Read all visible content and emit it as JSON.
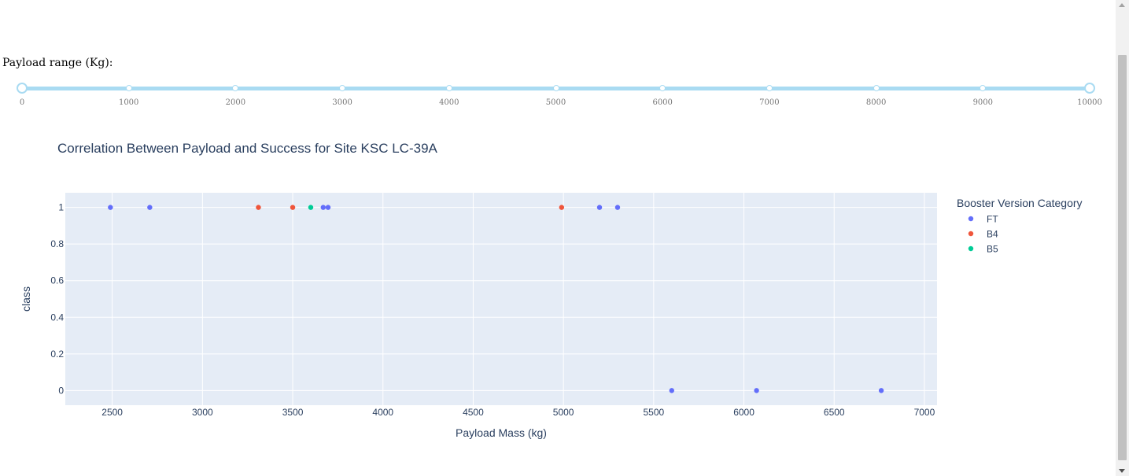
{
  "slider": {
    "label": "Payload range (Kg):",
    "min": 0,
    "max": 10000,
    "step_marks": [
      0,
      1000,
      2000,
      3000,
      4000,
      5000,
      6000,
      7000,
      8000,
      9000,
      10000
    ],
    "selected_range": [
      0,
      10000
    ],
    "color": "#a9dbf2"
  },
  "chart_data": {
    "type": "scatter",
    "title": "Correlation Between Payload and Success for Site KSC LC-39A",
    "xlabel": "Payload Mass (kg)",
    "ylabel": "class",
    "xlim": [
      2240,
      7070
    ],
    "ylim": [
      -0.08,
      1.08
    ],
    "xticks": [
      2500,
      3000,
      3500,
      4000,
      4500,
      5000,
      5500,
      6000,
      6500,
      7000
    ],
    "yticks": [
      0,
      0.2,
      0.4,
      0.6,
      0.8,
      1
    ],
    "ytick_labels": [
      "0",
      "0.2",
      "0.4",
      "0.6",
      "0.8",
      "1"
    ],
    "grid": true,
    "plot_background": "#e5ecf6",
    "legend": {
      "title": "Booster Version Category",
      "placement": "right"
    },
    "series": [
      {
        "name": "FT",
        "color": "#636efa",
        "points": [
          [
            2490,
            1
          ],
          [
            2708,
            1
          ],
          [
            3669,
            1
          ],
          [
            3696,
            1
          ],
          [
            5200,
            1
          ],
          [
            5300,
            1
          ],
          [
            5600,
            0
          ],
          [
            6070,
            0
          ],
          [
            6761,
            0
          ]
        ]
      },
      {
        "name": "B4",
        "color": "#ef553b",
        "points": [
          [
            3310,
            1
          ],
          [
            3500,
            1
          ],
          [
            4990,
            1
          ]
        ]
      },
      {
        "name": "B5",
        "color": "#00cc96",
        "points": [
          [
            3600,
            1
          ]
        ]
      }
    ]
  }
}
